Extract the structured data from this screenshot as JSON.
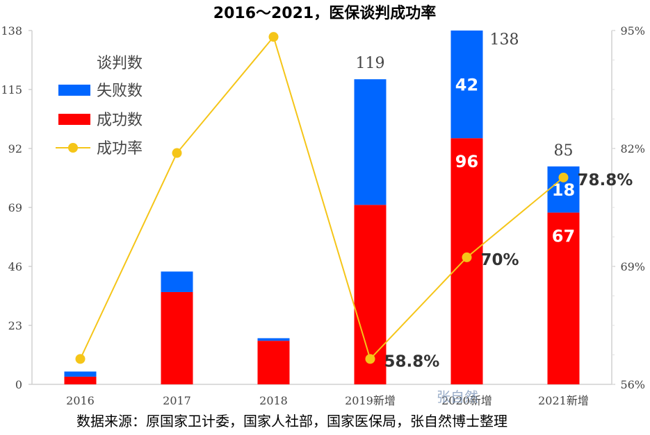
{
  "chart_data": {
    "type": "bar",
    "title": "2016～2021，医保谈判成功率",
    "categories": [
      "2016",
      "2017",
      "2018",
      "2019新增",
      "2020新增",
      "2021新增"
    ],
    "series": [
      {
        "name": "成功数",
        "values": [
          3,
          36,
          17,
          70,
          96,
          67
        ],
        "color": "#ff0000"
      },
      {
        "name": "失败数",
        "values": [
          2,
          8,
          1,
          49,
          42,
          18
        ],
        "color": "#0066ff"
      },
      {
        "name": "成功率",
        "type": "line",
        "axis": "right",
        "values": [
          58.8,
          81.5,
          94.3,
          58.8,
          70,
          78.8
        ],
        "color": "#f5c518"
      }
    ],
    "totals": [
      "",
      "",
      "",
      "119",
      "138",
      "85"
    ],
    "bar_labels": {
      "success": [
        "",
        "",
        "",
        "",
        "96",
        "67"
      ],
      "fail": [
        "",
        "",
        "",
        "",
        "42",
        "18"
      ]
    },
    "rate_labels": [
      "",
      "",
      "",
      "58.8%",
      "70%",
      "78.8%"
    ],
    "legend_title": "谈判数",
    "legend": [
      "失败数",
      "成功数",
      "成功率"
    ],
    "left_axis": {
      "ticks": [
        "0",
        "23",
        "46",
        "69",
        "92",
        "115",
        "138"
      ],
      "ylim": [
        0,
        138
      ]
    },
    "right_axis": {
      "ticks": [
        "56%",
        "69%",
        "82%",
        "95%"
      ],
      "ylim": [
        56,
        95
      ]
    }
  },
  "source_note": "数据来源：原国家卫计委，国家人社部，国家医保局，张自然博士整理",
  "watermark": "张自然"
}
